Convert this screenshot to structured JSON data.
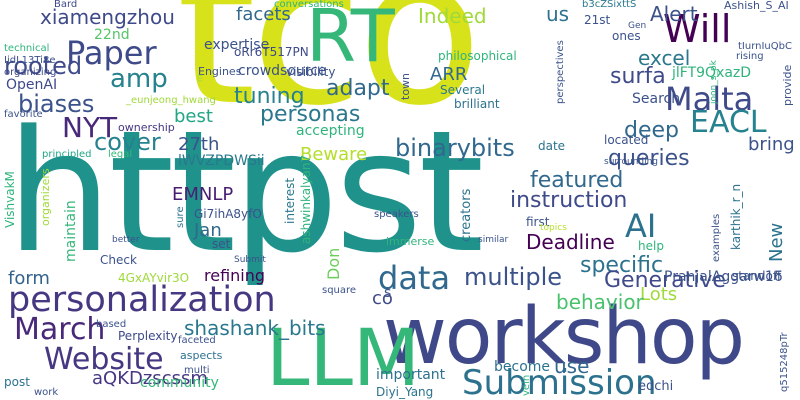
{
  "words": [
    {
      "text": "httpst",
      "color": "#1f928c"
    },
    {
      "text": "tco",
      "color": "#d8e21a"
    },
    {
      "text": "workshop",
      "color": "#3f4889"
    },
    {
      "text": "LLM",
      "color": "#35b779"
    },
    {
      "text": "RT",
      "color": "#35b779"
    },
    {
      "text": "personalization",
      "color": "#453781"
    },
    {
      "text": "Submission",
      "color": "#2c728e"
    },
    {
      "text": "Website",
      "color": "#453781"
    },
    {
      "text": "March",
      "color": "#482878"
    },
    {
      "text": "Will",
      "color": "#440154"
    },
    {
      "text": "Paper",
      "color": "#3e4a89"
    },
    {
      "text": "NYT",
      "color": "#482878"
    },
    {
      "text": "Malta",
      "color": "#3e4a89"
    },
    {
      "text": "EACL",
      "color": "#26828e"
    },
    {
      "text": "data",
      "color": "#31688e"
    },
    {
      "text": "AI",
      "color": "#2c728e"
    },
    {
      "text": "amp",
      "color": "#26828e"
    },
    {
      "text": "biases",
      "color": "#3b528b"
    },
    {
      "text": "binarybits",
      "color": "#31688e"
    },
    {
      "text": "multiple",
      "color": "#3b528b"
    },
    {
      "text": "instruction",
      "color": "#3e4a89"
    },
    {
      "text": "personas",
      "color": "#2a788e"
    },
    {
      "text": "xiamengzhou",
      "color": "#3e4a89"
    },
    {
      "text": "rooted",
      "color": "#3e4a89"
    },
    {
      "text": "tuning",
      "color": "#26828e"
    },
    {
      "text": "adapt",
      "color": "#31688e"
    },
    {
      "text": "cover",
      "color": "#26828e"
    },
    {
      "text": "shashank_bits",
      "color": "#2a788e"
    },
    {
      "text": "specific",
      "color": "#2c728e"
    },
    {
      "text": "featured",
      "color": "#31688e"
    },
    {
      "text": "queries",
      "color": "#3b528b"
    },
    {
      "text": "deep",
      "color": "#31688e"
    },
    {
      "text": "excel",
      "color": "#2a788e"
    },
    {
      "text": "surfa",
      "color": "#3e4a89"
    },
    {
      "text": "Alert",
      "color": "#3b528b"
    },
    {
      "text": "Indeed",
      "color": "#a0da39"
    },
    {
      "text": "facets",
      "color": "#31688e"
    },
    {
      "text": "us",
      "color": "#2c728e"
    },
    {
      "text": "jlFT9QxazD",
      "color": "#2fb47c"
    },
    {
      "text": "ARR",
      "color": "#31688e"
    },
    {
      "text": "Beware",
      "color": "#b5de2b"
    },
    {
      "text": "best",
      "color": "#21a685"
    },
    {
      "text": "27th",
      "color": "#3b528b"
    },
    {
      "text": "EMNLP",
      "color": "#481f70"
    },
    {
      "text": "Jan",
      "color": "#31688e"
    },
    {
      "text": "form",
      "color": "#3e4a89"
    },
    {
      "text": "refining",
      "color": "#33638d"
    },
    {
      "text": "Deadline",
      "color": "#440154"
    },
    {
      "text": "Generative",
      "color": "#6ccd5a"
    },
    {
      "text": "Lots",
      "color": "#440154"
    },
    {
      "text": "co",
      "color": "#3e4a89"
    },
    {
      "text": "behavior",
      "color": "#9fda3a"
    },
    {
      "text": "aQKDzscssm",
      "color": "#3e4a89"
    },
    {
      "text": "use",
      "color": "#4ac16d"
    },
    {
      "text": "bring",
      "color": "#453781"
    },
    {
      "text": "Don",
      "color": "#31688e"
    },
    {
      "text": "New",
      "color": "#3b528b"
    },
    {
      "text": "accepting",
      "color": "#2c728e"
    },
    {
      "text": "lWVZPDWSii",
      "color": "#2fb47c"
    },
    {
      "text": "crowdsource",
      "color": "#2a788e"
    },
    {
      "text": "22nd",
      "color": "#3b528b"
    },
    {
      "text": "OpenAI",
      "color": "#54c568"
    },
    {
      "text": "oRr6T517PN",
      "color": "#3e4a89"
    },
    {
      "text": "visibility",
      "color": "#3e4a89"
    },
    {
      "text": "4GxAYvir3O",
      "color": "#3b528b"
    },
    {
      "text": "Perplexity",
      "color": "#9fda3a"
    },
    {
      "text": "community",
      "color": "#3e4a89"
    },
    {
      "text": "important",
      "color": "#35b779"
    },
    {
      "text": "become",
      "color": "#2c728e"
    },
    {
      "text": "edchi",
      "color": "#2c728e"
    },
    {
      "text": "PranjalAggarw16",
      "color": "#3b528b"
    },
    {
      "text": "standoff",
      "color": "#3b528b"
    },
    {
      "text": "creators",
      "color": "#3b528b"
    },
    {
      "text": "Gi7ihA8yfO",
      "color": "#2c728e"
    },
    {
      "text": "ownership",
      "color": "#3b528b"
    },
    {
      "text": "philosophical",
      "color": "#453781"
    },
    {
      "text": "Several",
      "color": "#2fb47c"
    },
    {
      "text": "brilliant",
      "color": "#2a788e"
    },
    {
      "text": "Search",
      "color": "#2c728e"
    },
    {
      "text": "located",
      "color": "#3b528b"
    },
    {
      "text": "date",
      "color": "#3b528b"
    },
    {
      "text": "ones",
      "color": "#2c728e"
    },
    {
      "text": "21st",
      "color": "#3b528b"
    },
    {
      "text": "Engines",
      "color": "#3b528b"
    },
    {
      "text": "Bard",
      "color": "#3b528b"
    },
    {
      "text": "conversations",
      "color": "#3e4a89"
    },
    {
      "text": "b3cZSixttS",
      "color": "#2fb47c"
    },
    {
      "text": "Ashish_S_AI",
      "color": "#2a788e"
    },
    {
      "text": "technical",
      "color": "#3b528b"
    },
    {
      "text": "IjdL13Ti8e",
      "color": "#2fb47c"
    },
    {
      "text": "organizing",
      "color": "#3b528b"
    },
    {
      "text": "_eunjeong_hwang",
      "color": "#3e4a89"
    },
    {
      "text": "favorite",
      "color": "#a0da39"
    },
    {
      "text": "principled",
      "color": "#3b528b"
    },
    {
      "text": "legal",
      "color": "#21a685"
    },
    {
      "text": "VishvakM",
      "color": "#35b779"
    },
    {
      "text": "organizers",
      "color": "#2fb47c"
    },
    {
      "text": "maintain",
      "color": "#a0da39"
    },
    {
      "text": "Check",
      "color": "#35b779"
    },
    {
      "text": "based",
      "color": "#3b528b"
    },
    {
      "text": "faceted",
      "color": "#3b528b"
    },
    {
      "text": "multi",
      "color": "#3b528b"
    },
    {
      "text": "aspects",
      "color": "#3b528b"
    },
    {
      "text": "post",
      "color": "#2c728e"
    },
    {
      "text": "work",
      "color": "#2c728e"
    },
    {
      "text": "Diyi_Yang",
      "color": "#3b528b"
    },
    {
      "text": "vein",
      "color": "#2c728e"
    },
    {
      "text": "q515248pTr",
      "color": "#2fb47c"
    },
    {
      "text": "ashwinkalyan7",
      "color": "#3b528b"
    },
    {
      "text": "interest",
      "color": "#2fb47c"
    },
    {
      "text": "sure",
      "color": "#2a788e"
    },
    {
      "text": "set",
      "color": "#2c728e"
    },
    {
      "text": "better",
      "color": "#3b528b"
    },
    {
      "text": "Submit",
      "color": "#3b528b"
    },
    {
      "text": "square",
      "color": "#3b528b"
    },
    {
      "text": "first",
      "color": "#3b528b"
    },
    {
      "text": "speakers",
      "color": "#3b528b"
    },
    {
      "text": "topics",
      "color": "#3b528b"
    },
    {
      "text": "immerse",
      "color": "#b5de2b"
    },
    {
      "text": "help",
      "color": "#2fb47c"
    },
    {
      "text": "similar",
      "color": "#2fb47c"
    },
    {
      "text": "karthik_r_n",
      "color": "#3b528b"
    },
    {
      "text": "examples",
      "color": "#2c728e"
    },
    {
      "text": "perspectives",
      "color": "#3b528b"
    },
    {
      "text": "provide",
      "color": "#3b528b"
    },
    {
      "text": "rising",
      "color": "#3b528b"
    },
    {
      "text": "tIurnIuQbC",
      "color": "#3b528b"
    },
    {
      "text": "joon_s_pk",
      "color": "#3b528b"
    },
    {
      "text": "surrounding",
      "color": "#2fb47c"
    },
    {
      "text": "Gen",
      "color": "#3b528b"
    },
    {
      "text": "town",
      "color": "#3b528b"
    },
    {
      "text": "expertise",
      "color": "#3b528b"
    },
    {
      "text": "s",
      "color": "#3b528b"
    },
    {
      "text": "m",
      "color": "#3b528b"
    },
    {
      "text": "attend",
      "color": "#a0da39"
    }
  ]
}
